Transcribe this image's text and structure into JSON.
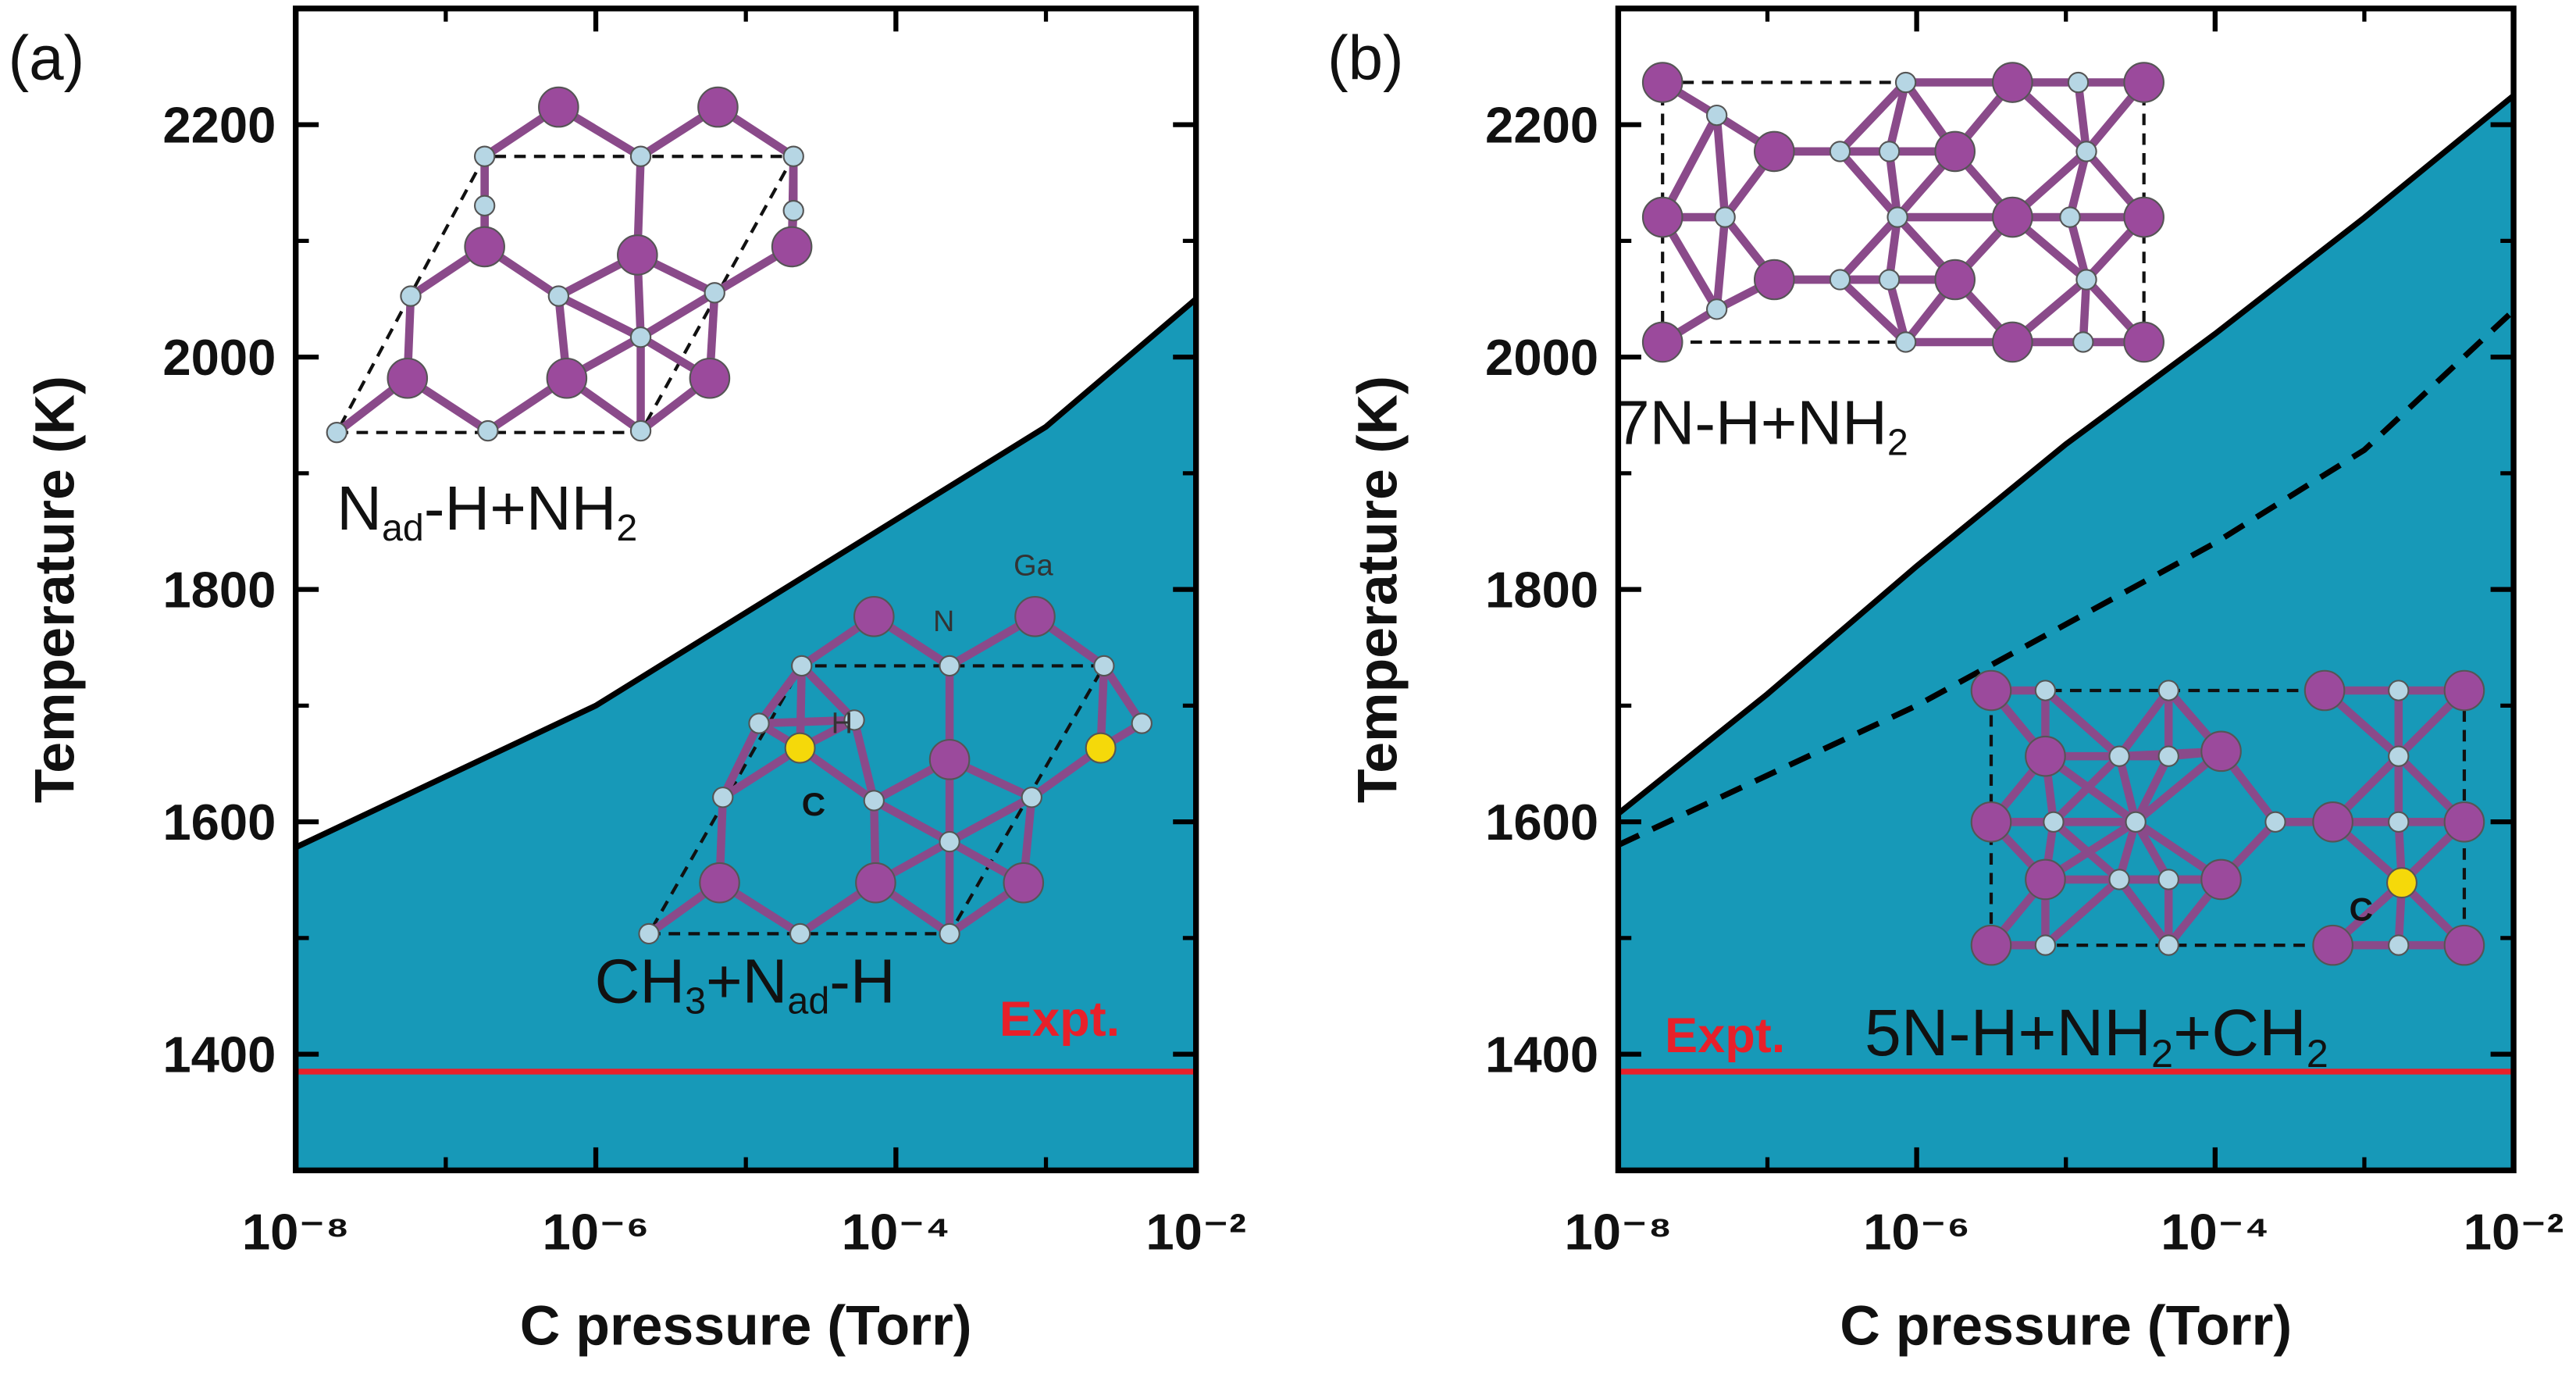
{
  "chart_data": [
    {
      "type": "line",
      "panel_label": "(a)",
      "xlabel": "C pressure (Torr)",
      "ylabel": "Temperature (K)",
      "xscale": "log",
      "xlim": [
        1e-08,
        0.01
      ],
      "ylim": [
        1300,
        2300
      ],
      "xticks": [
        {
          "value": 1e-08,
          "label": "10⁻⁸"
        },
        {
          "value": 1e-06,
          "label": "10⁻⁶"
        },
        {
          "value": 0.0001,
          "label": "10⁻⁴"
        },
        {
          "value": 0.01,
          "label": "10⁻²"
        }
      ],
      "xminorticks": [
        1e-07,
        1e-05,
        0.001
      ],
      "yticks": [
        1400,
        1600,
        1800,
        2000,
        2200
      ],
      "yminorticks": [
        1500,
        1700,
        1900,
        2100
      ],
      "x": [
        1e-08,
        1e-06,
        0.001,
        0.01
      ],
      "series": [
        {
          "color": "#000000",
          "fill": "#1799b8",
          "style": "solid",
          "values": [
            1578,
            1700,
            1940,
            2050
          ]
        }
      ],
      "reference_lines": [
        {
          "value": 1385,
          "label": "Expt.",
          "color": "#e8202a"
        }
      ],
      "annotations": [
        {
          "parts": [
            "N",
            "ad",
            "-H+NH",
            "2"
          ]
        },
        {
          "parts": [
            "CH",
            "3",
            "+N",
            "ad",
            "-H"
          ]
        }
      ],
      "atom_labels": [
        "Ga",
        "N",
        "H",
        "C"
      ]
    },
    {
      "type": "line",
      "panel_label": "(b)",
      "xlabel": "C pressure (Torr)",
      "ylabel": "Temperature (K)",
      "xscale": "log",
      "xlim": [
        1e-08,
        0.01
      ],
      "ylim": [
        1300,
        2300
      ],
      "xticks": [
        {
          "value": 1e-08,
          "label": "10⁻⁸"
        },
        {
          "value": 1e-06,
          "label": "10⁻⁶"
        },
        {
          "value": 0.0001,
          "label": "10⁻⁴"
        },
        {
          "value": 0.01,
          "label": "10⁻²"
        }
      ],
      "xminorticks": [
        1e-07,
        1e-05,
        0.001
      ],
      "yticks": [
        1400,
        1600,
        1800,
        2000,
        2200
      ],
      "yminorticks": [
        1500,
        1700,
        1900,
        2100
      ],
      "x": [
        1e-08,
        1e-07,
        1e-06,
        1e-05,
        0.0001,
        0.001,
        0.01
      ],
      "series": [
        {
          "color": "#000000",
          "fill": "#1799b8",
          "style": "solid",
          "values": [
            1607,
            1710,
            1820,
            1925,
            2020,
            2120,
            2225
          ]
        },
        {
          "color": "#000000",
          "style": "dashed",
          "values": [
            1580,
            1640,
            1700,
            1770,
            1840,
            1920,
            2040
          ]
        }
      ],
      "reference_lines": [
        {
          "value": 1385,
          "label": "Expt.",
          "color": "#e8202a"
        }
      ],
      "annotations": [
        {
          "parts": [
            "7N-H+NH",
            "2"
          ]
        },
        {
          "parts": [
            "5N-H+NH",
            "2",
            "+CH",
            "2"
          ]
        }
      ],
      "atom_labels": [
        "C"
      ]
    }
  ]
}
